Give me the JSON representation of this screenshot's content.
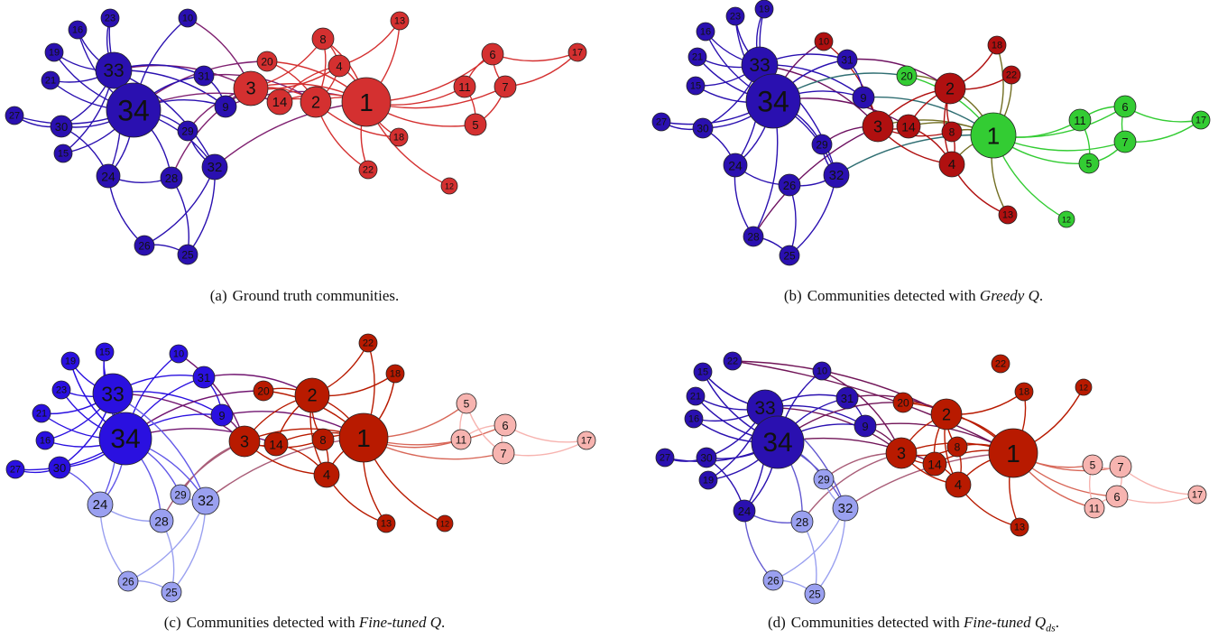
{
  "panels": [
    {
      "id": "a",
      "caption": {
        "tag": "(a)",
        "text": "Ground truth communities.",
        "method": "",
        "method_sub": "",
        "suffix": ""
      },
      "nodes": {
        "34": [
          148,
          122,
          30,
          "#2a10b0"
        ],
        "33": [
          126,
          78,
          20,
          "#2a10b0"
        ],
        "23": [
          122,
          20,
          10,
          "#2a10b0"
        ],
        "16": [
          86,
          33,
          10,
          "#2a10b0"
        ],
        "19": [
          60,
          58,
          10,
          "#2a10b0"
        ],
        "21": [
          56,
          89,
          10,
          "#2a10b0"
        ],
        "27": [
          16,
          128,
          10,
          "#2a10b0"
        ],
        "30": [
          68,
          140,
          12,
          "#2a10b0"
        ],
        "15": [
          70,
          170,
          10,
          "#2a10b0"
        ],
        "24": [
          120,
          195,
          13,
          "#2a10b0"
        ],
        "28": [
          190,
          197,
          12,
          "#2a10b0"
        ],
        "26": [
          160,
          272,
          11,
          "#2a10b0"
        ],
        "25": [
          208,
          282,
          11,
          "#2a10b0"
        ],
        "32": [
          238,
          185,
          14,
          "#2a10b0"
        ],
        "29": [
          208,
          145,
          11,
          "#2a10b0"
        ],
        "9": [
          250,
          118,
          12,
          "#2a10b0"
        ],
        "31": [
          226,
          84,
          11,
          "#2a10b0"
        ],
        "10": [
          208,
          20,
          10,
          "#2a10b0"
        ],
        "3": [
          278,
          98,
          19,
          "#d43030"
        ],
        "20": [
          296,
          68,
          11,
          "#d43030"
        ],
        "14": [
          310,
          113,
          14,
          "#d43030"
        ],
        "2": [
          350,
          113,
          17,
          "#d43030"
        ],
        "8": [
          358,
          43,
          12,
          "#d43030"
        ],
        "4": [
          376,
          73,
          12,
          "#d43030"
        ],
        "1": [
          406,
          113,
          27,
          "#d43030"
        ],
        "13": [
          443,
          23,
          10,
          "#d43030"
        ],
        "18": [
          442,
          152,
          10,
          "#d43030"
        ],
        "22": [
          408,
          188,
          10,
          "#d43030"
        ],
        "12": [
          498,
          206,
          9,
          "#d43030"
        ],
        "6": [
          546,
          60,
          12,
          "#d43030"
        ],
        "11": [
          515,
          96,
          12,
          "#d43030"
        ],
        "7": [
          560,
          96,
          12,
          "#d43030"
        ],
        "5": [
          527,
          138,
          12,
          "#d43030"
        ],
        "17": [
          640,
          58,
          10,
          "#d43030"
        ]
      }
    },
    {
      "id": "b",
      "caption": {
        "tag": "(b)",
        "text": "Communities detected with ",
        "method": "Greedy Q",
        "method_sub": "",
        "suffix": "."
      },
      "nodes": {
        "34": [
          182,
          112,
          30,
          "#2a10b0"
        ],
        "33": [
          167,
          72,
          20,
          "#2a10b0"
        ],
        "19": [
          172,
          10,
          10,
          "#2a10b0"
        ],
        "23": [
          140,
          18,
          10,
          "#2a10b0"
        ],
        "16": [
          107,
          35,
          10,
          "#2a10b0"
        ],
        "21": [
          98,
          63,
          10,
          "#2a10b0"
        ],
        "15": [
          96,
          95,
          10,
          "#2a10b0"
        ],
        "27": [
          58,
          135,
          10,
          "#2a10b0"
        ],
        "30": [
          104,
          142,
          11,
          "#2a10b0"
        ],
        "24": [
          140,
          183,
          13,
          "#2a10b0"
        ],
        "26": [
          200,
          205,
          12,
          "#2a10b0"
        ],
        "28": [
          160,
          262,
          11,
          "#2a10b0"
        ],
        "25": [
          200,
          283,
          11,
          "#2a10b0"
        ],
        "32": [
          252,
          194,
          14,
          "#2a10b0"
        ],
        "29": [
          236,
          160,
          11,
          "#2a10b0"
        ],
        "9": [
          282,
          108,
          12,
          "#2a10b0"
        ],
        "31": [
          264,
          66,
          11,
          "#2a10b0"
        ],
        "10": [
          238,
          46,
          10,
          "#b01010"
        ],
        "3": [
          298,
          140,
          17,
          "#b01010"
        ],
        "14": [
          332,
          140,
          13,
          "#b01010"
        ],
        "8": [
          380,
          146,
          11,
          "#b01010"
        ],
        "2": [
          378,
          98,
          17,
          "#b01010"
        ],
        "4": [
          380,
          182,
          14,
          "#b01010"
        ],
        "18": [
          430,
          50,
          10,
          "#b01010"
        ],
        "22": [
          446,
          83,
          10,
          "#b01010"
        ],
        "13": [
          442,
          238,
          10,
          "#b01010"
        ],
        "20": [
          330,
          84,
          11,
          "#33cc33"
        ],
        "1": [
          426,
          150,
          25,
          "#33cc33"
        ],
        "11": [
          522,
          133,
          12,
          "#33cc33"
        ],
        "6": [
          572,
          118,
          12,
          "#33cc33"
        ],
        "7": [
          572,
          157,
          12,
          "#33cc33"
        ],
        "5": [
          532,
          181,
          11,
          "#33cc33"
        ],
        "17": [
          656,
          133,
          10,
          "#33cc33"
        ],
        "12": [
          507,
          243,
          9,
          "#33cc33"
        ]
      }
    },
    {
      "id": "c",
      "caption": {
        "tag": "(c)",
        "text": "Communities detected with ",
        "method": "Fine-tuned Q",
        "method_sub": "",
        "suffix": "."
      },
      "nodes": {
        "34": [
          139,
          132,
          29,
          "#2a10e0"
        ],
        "33": [
          125,
          82,
          22,
          "#2a10e0"
        ],
        "15": [
          116,
          36,
          10,
          "#2a10e0"
        ],
        "19": [
          78,
          46,
          10,
          "#2a10e0"
        ],
        "23": [
          68,
          78,
          10,
          "#2a10e0"
        ],
        "21": [
          46,
          104,
          10,
          "#2a10e0"
        ],
        "16": [
          50,
          134,
          10,
          "#2a10e0"
        ],
        "27": [
          17,
          166,
          10,
          "#2a10e0"
        ],
        "30": [
          66,
          164,
          12,
          "#2a10e0"
        ],
        "10": [
          198,
          38,
          10,
          "#2a10e0"
        ],
        "31": [
          226,
          64,
          12,
          "#2a10e0"
        ],
        "9": [
          246,
          106,
          12,
          "#2a10e0"
        ],
        "24": [
          111,
          205,
          14,
          "#9aa0f0"
        ],
        "29": [
          200,
          194,
          11,
          "#9aa0f0"
        ],
        "32": [
          228,
          201,
          15,
          "#9aa0f0"
        ],
        "28": [
          179,
          223,
          13,
          "#9aa0f0"
        ],
        "26": [
          142,
          290,
          11,
          "#9aa0f0"
        ],
        "25": [
          190,
          302,
          11,
          "#9aa0f0"
        ],
        "3": [
          271,
          135,
          17,
          "#b81a00"
        ],
        "20": [
          292,
          79,
          11,
          "#b81a00"
        ],
        "14": [
          306,
          138,
          13,
          "#b81a00"
        ],
        "8": [
          358,
          133,
          12,
          "#b81a00"
        ],
        "2": [
          346,
          84,
          19,
          "#b81a00"
        ],
        "4": [
          362,
          172,
          14,
          "#b81a00"
        ],
        "1": [
          403,
          131,
          27,
          "#b81a00"
        ],
        "22": [
          408,
          26,
          10,
          "#b81a00"
        ],
        "18": [
          438,
          60,
          10,
          "#b81a00"
        ],
        "13": [
          428,
          226,
          10,
          "#b81a00"
        ],
        "12": [
          493,
          226,
          9,
          "#b81a00"
        ],
        "5": [
          517,
          93,
          11,
          "#f7b4b0"
        ],
        "6": [
          560,
          117,
          12,
          "#f7b4b0"
        ],
        "11": [
          511,
          133,
          11,
          "#f7b4b0"
        ],
        "7": [
          558,
          148,
          12,
          "#f7b4b0"
        ],
        "17": [
          650,
          134,
          10,
          "#f7b4b0"
        ]
      }
    },
    {
      "id": "d",
      "caption": {
        "tag": "(d)",
        "text": "Communities detected with ",
        "method": "Fine-tuned Q",
        "method_sub": "ds",
        "suffix": "."
      },
      "nodes": {
        "34": [
          187,
          136,
          29,
          "#2a10b0"
        ],
        "33": [
          173,
          98,
          20,
          "#2a10b0"
        ],
        "22": [
          137,
          46,
          10,
          "#2a10b0"
        ],
        "15": [
          104,
          58,
          10,
          "#2a10b0"
        ],
        "21": [
          96,
          85,
          10,
          "#2a10b0"
        ],
        "16": [
          94,
          110,
          10,
          "#2a10b0"
        ],
        "27": [
          62,
          153,
          10,
          "#2a10b0"
        ],
        "30": [
          108,
          153,
          11,
          "#2a10b0"
        ],
        "19": [
          110,
          178,
          10,
          "#2a10b0"
        ],
        "24": [
          150,
          212,
          12,
          "#2a10b0"
        ],
        "10": [
          236,
          57,
          10,
          "#2a10b0"
        ],
        "31": [
          264,
          87,
          12,
          "#2a10b0"
        ],
        "9": [
          284,
          118,
          12,
          "#2a10b0"
        ],
        "29": [
          238,
          177,
          11,
          "#9aa0f0"
        ],
        "32": [
          262,
          209,
          14,
          "#9aa0f0"
        ],
        "28": [
          214,
          224,
          12,
          "#9aa0f0"
        ],
        "26": [
          182,
          289,
          11,
          "#9aa0f0"
        ],
        "25": [
          228,
          304,
          11,
          "#9aa0f0"
        ],
        "3": [
          324,
          148,
          17,
          "#b81a00"
        ],
        "20": [
          326,
          92,
          11,
          "#b81a00"
        ],
        "14": [
          361,
          160,
          13,
          "#b81a00"
        ],
        "8": [
          386,
          141,
          11,
          "#b81a00"
        ],
        "2": [
          374,
          105,
          17,
          "#b81a00"
        ],
        "4": [
          387,
          183,
          14,
          "#b81a00"
        ],
        "1": [
          448,
          148,
          27,
          "#b81a00"
        ],
        "22b": [
          434,
          49,
          10,
          "#b81a00"
        ],
        "18": [
          460,
          80,
          10,
          "#b81a00"
        ],
        "12": [
          526,
          75,
          9,
          "#b81a00"
        ],
        "13": [
          455,
          230,
          10,
          "#b81a00"
        ],
        "5": [
          536,
          161,
          11,
          "#f7b4b0"
        ],
        "7": [
          567,
          163,
          12,
          "#f7b4b0"
        ],
        "11": [
          538,
          209,
          11,
          "#f7b4b0"
        ],
        "6": [
          563,
          196,
          12,
          "#f7b4b0"
        ],
        "17": [
          652,
          194,
          10,
          "#f7b4b0"
        ]
      }
    }
  ],
  "edges": [
    [
      "1",
      "2"
    ],
    [
      "1",
      "3"
    ],
    [
      "1",
      "4"
    ],
    [
      "1",
      "5"
    ],
    [
      "1",
      "6"
    ],
    [
      "1",
      "7"
    ],
    [
      "1",
      "8"
    ],
    [
      "1",
      "9"
    ],
    [
      "1",
      "11"
    ],
    [
      "1",
      "12"
    ],
    [
      "1",
      "13"
    ],
    [
      "1",
      "14"
    ],
    [
      "1",
      "18"
    ],
    [
      "1",
      "20"
    ],
    [
      "1",
      "22"
    ],
    [
      "1",
      "32"
    ],
    [
      "2",
      "3"
    ],
    [
      "2",
      "4"
    ],
    [
      "2",
      "8"
    ],
    [
      "2",
      "14"
    ],
    [
      "2",
      "18"
    ],
    [
      "2",
      "20"
    ],
    [
      "2",
      "22"
    ],
    [
      "2",
      "31"
    ],
    [
      "3",
      "4"
    ],
    [
      "3",
      "8"
    ],
    [
      "3",
      "9"
    ],
    [
      "3",
      "10"
    ],
    [
      "3",
      "14"
    ],
    [
      "3",
      "28"
    ],
    [
      "3",
      "29"
    ],
    [
      "3",
      "33"
    ],
    [
      "4",
      "8"
    ],
    [
      "4",
      "13"
    ],
    [
      "4",
      "14"
    ],
    [
      "5",
      "7"
    ],
    [
      "5",
      "11"
    ],
    [
      "6",
      "7"
    ],
    [
      "6",
      "11"
    ],
    [
      "6",
      "17"
    ],
    [
      "7",
      "17"
    ],
    [
      "9",
      "31"
    ],
    [
      "9",
      "33"
    ],
    [
      "9",
      "34"
    ],
    [
      "10",
      "34"
    ],
    [
      "14",
      "34"
    ],
    [
      "15",
      "33"
    ],
    [
      "15",
      "34"
    ],
    [
      "16",
      "33"
    ],
    [
      "16",
      "34"
    ],
    [
      "19",
      "33"
    ],
    [
      "19",
      "34"
    ],
    [
      "20",
      "34"
    ],
    [
      "21",
      "33"
    ],
    [
      "21",
      "34"
    ],
    [
      "23",
      "33"
    ],
    [
      "23",
      "34"
    ],
    [
      "24",
      "26"
    ],
    [
      "24",
      "28"
    ],
    [
      "24",
      "30"
    ],
    [
      "24",
      "33"
    ],
    [
      "24",
      "34"
    ],
    [
      "25",
      "26"
    ],
    [
      "25",
      "28"
    ],
    [
      "25",
      "32"
    ],
    [
      "26",
      "32"
    ],
    [
      "27",
      "30"
    ],
    [
      "27",
      "34"
    ],
    [
      "28",
      "34"
    ],
    [
      "29",
      "32"
    ],
    [
      "29",
      "34"
    ],
    [
      "30",
      "33"
    ],
    [
      "30",
      "34"
    ],
    [
      "31",
      "33"
    ],
    [
      "31",
      "34"
    ],
    [
      "32",
      "33"
    ],
    [
      "32",
      "34"
    ],
    [
      "33",
      "34"
    ]
  ],
  "d_label_overrides": {
    "22b": "22"
  }
}
